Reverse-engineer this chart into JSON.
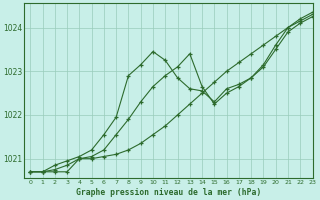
{
  "background_color": "#c8efe8",
  "grid_color": "#99ccbb",
  "line_color": "#2d6b2d",
  "title": "Graphe pression niveau de la mer (hPa)",
  "xlim": [
    -0.5,
    23
  ],
  "ylim": [
    1020.55,
    1024.55
  ],
  "yticks": [
    1021,
    1022,
    1023,
    1024
  ],
  "xticks": [
    0,
    1,
    2,
    3,
    4,
    5,
    6,
    7,
    8,
    9,
    10,
    11,
    12,
    13,
    14,
    15,
    16,
    17,
    18,
    19,
    20,
    21,
    22,
    23
  ],
  "line1": [
    1020.7,
    1020.7,
    1020.85,
    1020.95,
    1021.05,
    1021.2,
    1021.55,
    1021.95,
    1022.9,
    1023.15,
    1023.45,
    1023.25,
    1022.85,
    1022.6,
    1022.55,
    1022.3,
    1022.6,
    1022.7,
    1022.85,
    1023.15,
    1023.6,
    1024.0,
    1024.15,
    1024.3
  ],
  "line2": [
    1020.7,
    1020.7,
    1020.75,
    1020.85,
    1021.0,
    1021.05,
    1021.2,
    1021.55,
    1021.9,
    1022.3,
    1022.65,
    1022.9,
    1023.1,
    1023.4,
    1022.65,
    1022.25,
    1022.5,
    1022.65,
    1022.85,
    1023.1,
    1023.5,
    1023.9,
    1024.1,
    1024.25
  ],
  "line3": [
    1020.7,
    1020.7,
    1020.7,
    1020.7,
    1021.0,
    1021.0,
    1021.05,
    1021.1,
    1021.2,
    1021.35,
    1021.55,
    1021.75,
    1022.0,
    1022.25,
    1022.5,
    1022.75,
    1023.0,
    1023.2,
    1023.4,
    1023.6,
    1023.8,
    1024.0,
    1024.2,
    1024.35
  ]
}
